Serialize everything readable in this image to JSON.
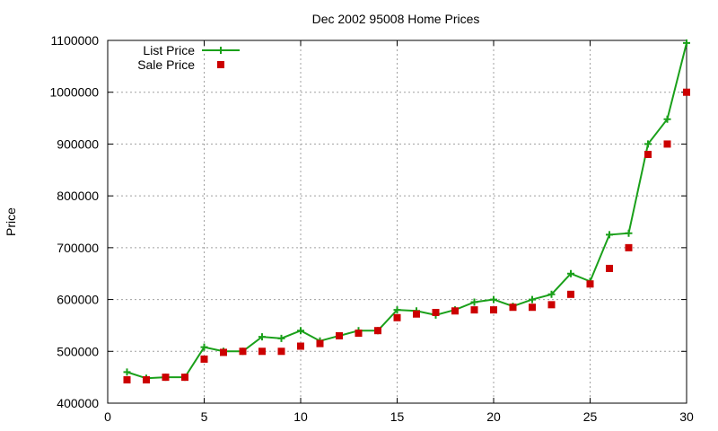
{
  "chart_data": {
    "type": "line",
    "title": "Dec 2002 95008 Home Prices",
    "ylabel": "Price",
    "xlim": [
      0,
      30
    ],
    "ylim": [
      400000,
      1100000
    ],
    "xticks": [
      "0",
      "5",
      "10",
      "15",
      "20",
      "25",
      "30"
    ],
    "yticks": [
      "400000",
      "500000",
      "600000",
      "700000",
      "800000",
      "900000",
      "1000000",
      "1100000"
    ],
    "grid": true,
    "legend_position": "top-left",
    "x": [
      1,
      2,
      3,
      4,
      5,
      6,
      7,
      8,
      9,
      10,
      11,
      12,
      13,
      14,
      15,
      16,
      17,
      18,
      19,
      20,
      21,
      22,
      23,
      24,
      25,
      26,
      27,
      28,
      29,
      30
    ],
    "series": [
      {
        "name": "List Price",
        "style": "line-with-plus-markers",
        "color": "#1aa01a",
        "values": [
          460000,
          448000,
          450000,
          450000,
          508000,
          500000,
          500000,
          528000,
          525000,
          540000,
          520000,
          530000,
          540000,
          540000,
          580000,
          578000,
          570000,
          580000,
          595000,
          600000,
          587000,
          600000,
          610000,
          650000,
          635000,
          725000,
          728000,
          900000,
          948000,
          1095000
        ]
      },
      {
        "name": "Sale Price",
        "style": "square-markers",
        "color": "#cc0000",
        "values": [
          445000,
          445000,
          450000,
          450000,
          485000,
          498000,
          500000,
          500000,
          500000,
          510000,
          515000,
          530000,
          535000,
          540000,
          565000,
          572000,
          575000,
          578000,
          580000,
          580000,
          585000,
          585000,
          590000,
          610000,
          630000,
          660000,
          700000,
          880000,
          900000,
          1000000
        ]
      }
    ]
  }
}
